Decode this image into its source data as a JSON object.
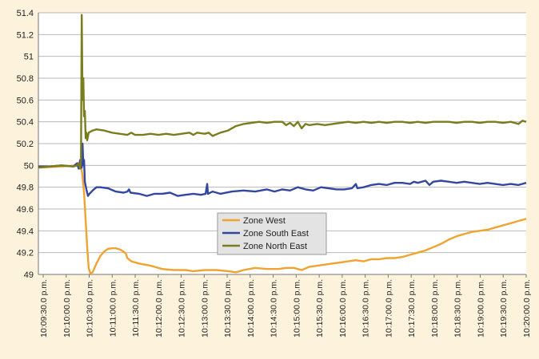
{
  "chart_data": {
    "type": "line",
    "title": "",
    "xlabel": "",
    "ylabel": "",
    "ylim": [
      49,
      51.4
    ],
    "y_ticks": [
      "51.4",
      "51.2",
      "51",
      "50.8",
      "50.6",
      "50.4",
      "50.2",
      "50",
      "49.8",
      "49.6",
      "49.4",
      "49.2",
      "49"
    ],
    "x_ticks": [
      "10:09:30.0 p.m.",
      "10:10:00.0 p.m.",
      "10:10:30.0 p.m.",
      "10:11:00.0 p.m.",
      "10:11:30.0 p.m.",
      "10:12:00.0 p.m.",
      "10:12:30.0 p.m.",
      "10:13:00.0 p.m.",
      "10:13:30.0 p.m.",
      "10:14:00.0 p.m.",
      "10:14:30.0 p.m.",
      "10:15:00.0 p.m.",
      "10:15:30.0 p.m.",
      "10:16:00.0 p.m.",
      "10:16:30.0 p.m.",
      "10:17:00.0 p.m.",
      "10:17:30.0 p.m.",
      "10:18:00.0 p.m.",
      "10:18:30.0 p.m.",
      "10:19:00.0 p.m.",
      "10:19:30.0 p.m.",
      "10:20:00.0 p.m."
    ],
    "x_range_seconds": [
      0,
      630
    ],
    "grid": true,
    "legend_position": "center",
    "series": [
      {
        "name": "Zone West",
        "color": "#f0a330",
        "points": [
          [
            0,
            49.98
          ],
          [
            30,
            49.99
          ],
          [
            50,
            50.0
          ],
          [
            55,
            50.0
          ],
          [
            57,
            49.9
          ],
          [
            59,
            49.75
          ],
          [
            61,
            49.5
          ],
          [
            63,
            49.25
          ],
          [
            65,
            49.06
          ],
          [
            67,
            49.01
          ],
          [
            70,
            49.02
          ],
          [
            75,
            49.1
          ],
          [
            80,
            49.17
          ],
          [
            85,
            49.21
          ],
          [
            90,
            49.235
          ],
          [
            95,
            49.24
          ],
          [
            100,
            49.24
          ],
          [
            105,
            49.23
          ],
          [
            110,
            49.21
          ],
          [
            113,
            49.19
          ],
          [
            115,
            49.15
          ],
          [
            120,
            49.12
          ],
          [
            130,
            49.1
          ],
          [
            145,
            49.08
          ],
          [
            160,
            49.05
          ],
          [
            175,
            49.04
          ],
          [
            190,
            49.04
          ],
          [
            200,
            49.03
          ],
          [
            215,
            49.04
          ],
          [
            230,
            49.04
          ],
          [
            245,
            49.03
          ],
          [
            255,
            49.02
          ],
          [
            265,
            49.04
          ],
          [
            280,
            49.06
          ],
          [
            295,
            49.05
          ],
          [
            310,
            49.05
          ],
          [
            320,
            49.06
          ],
          [
            330,
            49.06
          ],
          [
            340,
            49.04
          ],
          [
            350,
            49.07
          ],
          [
            360,
            49.08
          ],
          [
            370,
            49.09
          ],
          [
            380,
            49.1
          ],
          [
            390,
            49.11
          ],
          [
            400,
            49.12
          ],
          [
            410,
            49.13
          ],
          [
            420,
            49.12
          ],
          [
            430,
            49.14
          ],
          [
            440,
            49.14
          ],
          [
            450,
            49.15
          ],
          [
            460,
            49.15
          ],
          [
            470,
            49.16
          ],
          [
            480,
            49.18
          ],
          [
            490,
            49.2
          ],
          [
            500,
            49.22
          ],
          [
            510,
            49.25
          ],
          [
            520,
            49.28
          ],
          [
            530,
            49.32
          ],
          [
            540,
            49.35
          ],
          [
            550,
            49.37
          ],
          [
            560,
            49.39
          ],
          [
            570,
            49.4
          ],
          [
            580,
            49.41
          ],
          [
            590,
            49.43
          ],
          [
            600,
            49.45
          ],
          [
            610,
            49.47
          ],
          [
            620,
            49.49
          ],
          [
            630,
            49.51
          ]
        ]
      },
      {
        "name": "Zone South East",
        "color": "#3346a0",
        "points": [
          [
            0,
            49.99
          ],
          [
            15,
            49.99
          ],
          [
            30,
            50.0
          ],
          [
            45,
            49.99
          ],
          [
            50,
            50.02
          ],
          [
            52,
            49.97
          ],
          [
            54,
            50.05
          ],
          [
            56,
            49.98
          ],
          [
            57,
            50.2
          ],
          [
            58,
            50.0
          ],
          [
            59,
            50.05
          ],
          [
            60,
            49.85
          ],
          [
            62,
            49.78
          ],
          [
            64,
            49.72
          ],
          [
            66,
            49.74
          ],
          [
            70,
            49.77
          ],
          [
            75,
            49.8
          ],
          [
            80,
            49.8
          ],
          [
            90,
            49.79
          ],
          [
            100,
            49.76
          ],
          [
            110,
            49.75
          ],
          [
            115,
            49.76
          ],
          [
            117,
            49.78
          ],
          [
            119,
            49.75
          ],
          [
            130,
            49.74
          ],
          [
            140,
            49.72
          ],
          [
            150,
            49.74
          ],
          [
            160,
            49.74
          ],
          [
            170,
            49.75
          ],
          [
            180,
            49.72
          ],
          [
            190,
            49.73
          ],
          [
            200,
            49.74
          ],
          [
            210,
            49.73
          ],
          [
            216,
            49.74
          ],
          [
            218,
            49.83
          ],
          [
            219,
            49.74
          ],
          [
            225,
            49.76
          ],
          [
            235,
            49.74
          ],
          [
            250,
            49.76
          ],
          [
            265,
            49.77
          ],
          [
            280,
            49.76
          ],
          [
            295,
            49.78
          ],
          [
            305,
            49.76
          ],
          [
            315,
            49.78
          ],
          [
            325,
            49.77
          ],
          [
            335,
            49.8
          ],
          [
            345,
            49.78
          ],
          [
            355,
            49.77
          ],
          [
            365,
            49.8
          ],
          [
            375,
            49.79
          ],
          [
            385,
            49.78
          ],
          [
            395,
            49.78
          ],
          [
            405,
            49.79
          ],
          [
            410,
            49.83
          ],
          [
            412,
            49.79
          ],
          [
            420,
            49.8
          ],
          [
            430,
            49.82
          ],
          [
            440,
            49.83
          ],
          [
            450,
            49.82
          ],
          [
            460,
            49.84
          ],
          [
            470,
            49.84
          ],
          [
            480,
            49.83
          ],
          [
            485,
            49.85
          ],
          [
            490,
            49.84
          ],
          [
            500,
            49.86
          ],
          [
            505,
            49.82
          ],
          [
            510,
            49.85
          ],
          [
            520,
            49.86
          ],
          [
            530,
            49.85
          ],
          [
            540,
            49.84
          ],
          [
            550,
            49.85
          ],
          [
            560,
            49.84
          ],
          [
            570,
            49.83
          ],
          [
            580,
            49.84
          ],
          [
            590,
            49.83
          ],
          [
            600,
            49.82
          ],
          [
            610,
            49.83
          ],
          [
            620,
            49.82
          ],
          [
            630,
            49.84
          ]
        ]
      },
      {
        "name": "Zone North East",
        "color": "#7a7d1e",
        "points": [
          [
            0,
            49.98
          ],
          [
            15,
            49.99
          ],
          [
            30,
            50.0
          ],
          [
            45,
            49.99
          ],
          [
            50,
            50.0
          ],
          [
            52,
            50.02
          ],
          [
            54,
            49.97
          ],
          [
            55,
            50.05
          ],
          [
            56,
            51.38
          ],
          [
            57,
            50.6
          ],
          [
            58,
            50.8
          ],
          [
            59,
            50.45
          ],
          [
            60,
            50.5
          ],
          [
            61,
            50.25
          ],
          [
            62,
            50.3
          ],
          [
            63,
            50.23
          ],
          [
            65,
            50.3
          ],
          [
            70,
            50.32
          ],
          [
            75,
            50.33
          ],
          [
            85,
            50.32
          ],
          [
            95,
            50.3
          ],
          [
            105,
            50.29
          ],
          [
            115,
            50.28
          ],
          [
            120,
            50.3
          ],
          [
            125,
            50.28
          ],
          [
            135,
            50.28
          ],
          [
            145,
            50.29
          ],
          [
            155,
            50.28
          ],
          [
            165,
            50.29
          ],
          [
            175,
            50.28
          ],
          [
            185,
            50.29
          ],
          [
            195,
            50.3
          ],
          [
            200,
            50.28
          ],
          [
            205,
            50.3
          ],
          [
            215,
            50.29
          ],
          [
            220,
            50.3
          ],
          [
            225,
            50.27
          ],
          [
            235,
            50.3
          ],
          [
            245,
            50.32
          ],
          [
            255,
            50.36
          ],
          [
            265,
            50.38
          ],
          [
            275,
            50.39
          ],
          [
            285,
            50.4
          ],
          [
            295,
            50.39
          ],
          [
            305,
            50.4
          ],
          [
            315,
            50.4
          ],
          [
            320,
            50.37
          ],
          [
            325,
            50.39
          ],
          [
            330,
            50.36
          ],
          [
            335,
            50.4
          ],
          [
            340,
            50.34
          ],
          [
            345,
            50.38
          ],
          [
            350,
            50.37
          ],
          [
            360,
            50.38
          ],
          [
            370,
            50.37
          ],
          [
            380,
            50.38
          ],
          [
            390,
            50.39
          ],
          [
            400,
            50.4
          ],
          [
            410,
            50.39
          ],
          [
            420,
            50.4
          ],
          [
            430,
            50.39
          ],
          [
            440,
            50.4
          ],
          [
            450,
            50.39
          ],
          [
            460,
            50.4
          ],
          [
            470,
            50.4
          ],
          [
            480,
            50.39
          ],
          [
            490,
            50.4
          ],
          [
            500,
            50.39
          ],
          [
            510,
            50.4
          ],
          [
            520,
            50.4
          ],
          [
            530,
            50.4
          ],
          [
            540,
            50.39
          ],
          [
            550,
            50.4
          ],
          [
            560,
            50.4
          ],
          [
            570,
            50.39
          ],
          [
            580,
            50.4
          ],
          [
            590,
            50.4
          ],
          [
            600,
            50.39
          ],
          [
            610,
            50.4
          ],
          [
            620,
            50.38
          ],
          [
            625,
            50.41
          ],
          [
            630,
            50.4
          ]
        ]
      }
    ]
  }
}
